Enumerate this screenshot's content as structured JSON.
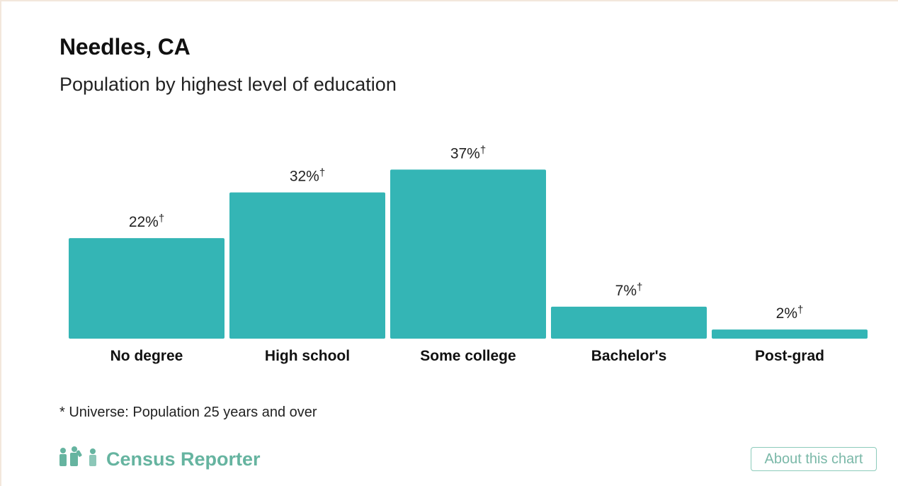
{
  "header": {
    "title": "Needles, CA",
    "subtitle": "Population by highest level of education"
  },
  "chart_data": {
    "type": "bar",
    "categories": [
      "No degree",
      "High school",
      "Some college",
      "Bachelor's",
      "Post-grad"
    ],
    "values": [
      22,
      32,
      37,
      7,
      2
    ],
    "value_labels": [
      "22%",
      "32%",
      "37%",
      "7%",
      "2%"
    ],
    "label_marker": "†",
    "bar_color": "#34b5b5",
    "ylim": [
      0,
      45
    ],
    "grid": false,
    "legend": "none"
  },
  "footer": {
    "universe_note": "* Universe: Population 25 years and over",
    "brand_name": "Census Reporter",
    "brand_color": "#66b4a0",
    "about_button": "About this chart"
  }
}
